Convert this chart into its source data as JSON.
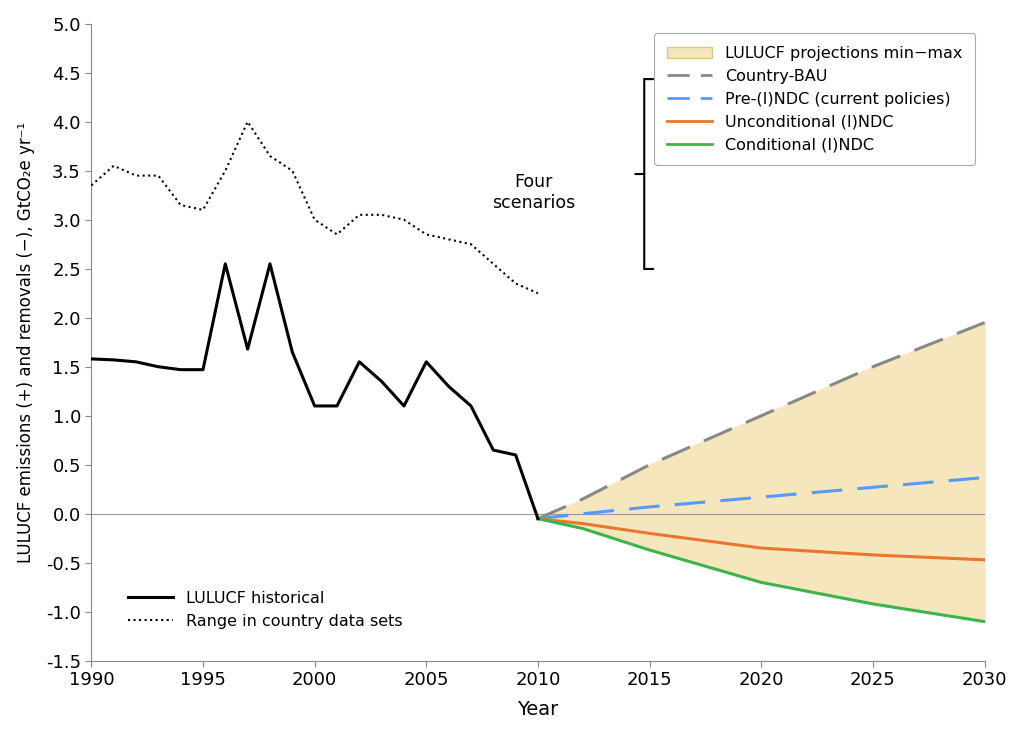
{
  "xlabel": "Year",
  "ylabel": "LULUCF emissions (+) and removals (−), GtCO₂e yr⁻¹",
  "xlim": [
    1990,
    2030
  ],
  "ylim": [
    -1.5,
    5.0
  ],
  "yticks": [
    -1.5,
    -1.0,
    -0.5,
    0.0,
    0.5,
    1.0,
    1.5,
    2.0,
    2.5,
    3.0,
    3.5,
    4.0,
    4.5,
    5.0
  ],
  "xticks": [
    1990,
    1995,
    2000,
    2005,
    2010,
    2015,
    2020,
    2025,
    2030
  ],
  "hist_years": [
    1990,
    1991,
    1992,
    1993,
    1994,
    1995,
    1996,
    1997,
    1998,
    1999,
    2000,
    2001,
    2002,
    2003,
    2004,
    2005,
    2006,
    2007,
    2008,
    2009,
    2010
  ],
  "hist_solid": [
    1.58,
    1.57,
    1.55,
    1.5,
    1.47,
    1.47,
    2.55,
    1.68,
    2.55,
    1.65,
    1.1,
    1.1,
    1.55,
    1.35,
    1.1,
    1.55,
    1.3,
    1.1,
    0.65,
    0.6,
    -0.05
  ],
  "hist_dotted": [
    3.35,
    3.55,
    3.45,
    3.45,
    3.15,
    3.1,
    3.5,
    4.0,
    3.65,
    3.5,
    3.0,
    2.85,
    3.05,
    3.05,
    3.0,
    2.85,
    2.8,
    2.75,
    2.55,
    2.35,
    2.25
  ],
  "scenario_years": [
    2010,
    2012,
    2015,
    2020,
    2025,
    2030
  ],
  "bau_values": [
    -0.05,
    0.15,
    0.5,
    1.0,
    1.5,
    1.95
  ],
  "pre_indc_values": [
    -0.05,
    0.0,
    0.07,
    0.17,
    0.27,
    0.37
  ],
  "uncond_values": [
    -0.05,
    -0.1,
    -0.2,
    -0.35,
    -0.42,
    -0.47
  ],
  "cond_values": [
    -0.05,
    -0.15,
    -0.37,
    -0.7,
    -0.92,
    -1.1
  ],
  "shade_upper": [
    -0.05,
    0.15,
    0.5,
    1.0,
    1.5,
    1.95
  ],
  "shade_lower": [
    -0.05,
    -0.15,
    -0.37,
    -0.7,
    -0.92,
    -1.1
  ],
  "hist_color": "#000000",
  "dotted_color": "#000000",
  "bau_color": "#888888",
  "pre_indc_color": "#5599ff",
  "uncond_color": "#e8762c",
  "cond_color": "#3cb44b",
  "shade_color": "#f5e6be",
  "legend_shade_color": "#f5e6be",
  "legend_shade_edge": "#ddc878"
}
